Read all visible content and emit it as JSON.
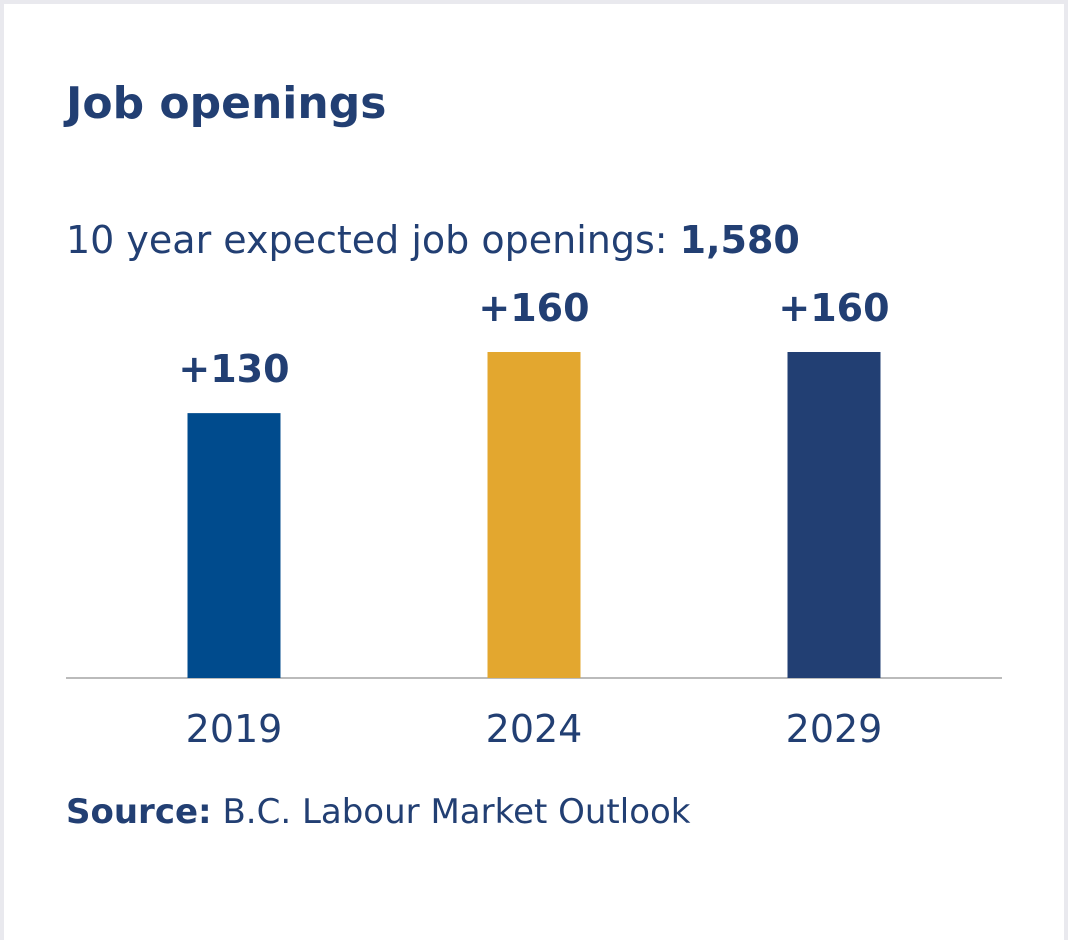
{
  "chart_data": {
    "type": "bar",
    "title": "Job openings",
    "subtitle": "10 year expected job openings:",
    "subtitle_value": "1,580",
    "categories": [
      "2019",
      "2024",
      "2029"
    ],
    "values": [
      130,
      160,
      160
    ],
    "value_labels": [
      "+130",
      "+160",
      "+160"
    ],
    "colors": [
      "#004b8d",
      "#e3a72f",
      "#223f73"
    ],
    "source_label": "Source:",
    "source": "B.C. Labour Market Outlook"
  }
}
